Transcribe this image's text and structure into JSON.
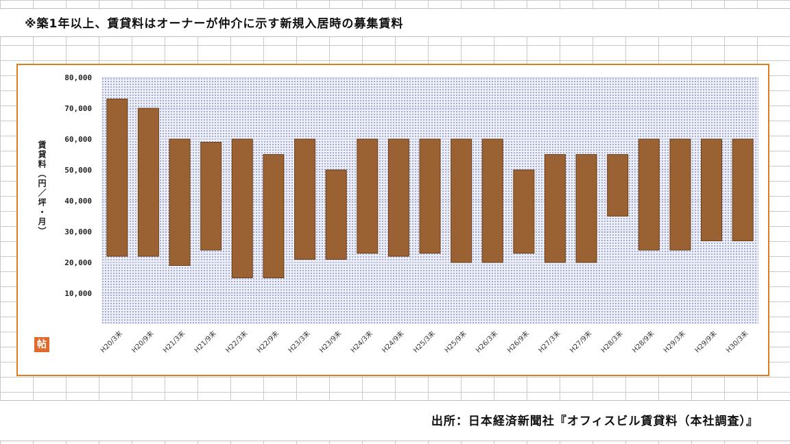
{
  "note": "※築1年以上、賃貸料はオーナーが仲介に示す新規入居時の募集賃料",
  "source": "出所：日本経済新聞社『オフィスビル賃貸料（本社調査）』",
  "logo_text": "帖",
  "colors": {
    "bar": "#9a6233",
    "bar_stroke": "#6b3f1c",
    "frame": "#e07c1c",
    "plot_dots": "#8d93c3"
  },
  "chart_data": {
    "type": "bar",
    "subtype": "floating-range",
    "categories": [
      "H20/3末",
      "H20/9末",
      "H21/3末",
      "H21/9末",
      "H22/3末",
      "H22/9末",
      "H23/3末",
      "H23/9末",
      "H24/3末",
      "H24/9末",
      "H25/3末",
      "H25/9末",
      "H26/3末",
      "H26/9末",
      "H27/3末",
      "H27/9末",
      "H28/3末",
      "H28/9末",
      "H29/3末",
      "H29/9末",
      "H30/3末"
    ],
    "low": [
      22000,
      22000,
      19000,
      24000,
      15000,
      15000,
      21000,
      21000,
      23000,
      22000,
      23000,
      20000,
      20000,
      23000,
      20000,
      20000,
      35000,
      24000,
      24000,
      27000,
      27000
    ],
    "high": [
      73000,
      70000,
      60000,
      59000,
      60000,
      55000,
      60000,
      50000,
      60000,
      60000,
      60000,
      60000,
      60000,
      50000,
      55000,
      55000,
      55000,
      60000,
      60000,
      60000,
      60000
    ],
    "ylim": [
      0,
      80000
    ],
    "yticks": [
      "10,000",
      "20,000",
      "30,000",
      "40,000",
      "50,000",
      "60,000",
      "70,000",
      "80,000"
    ],
    "ytick_values": [
      10000,
      20000,
      30000,
      40000,
      50000,
      60000,
      70000,
      80000
    ],
    "ylabel": "賃貸料（円／坪・月）",
    "xlabel": "",
    "title": "",
    "grid": true,
    "legend": "none"
  }
}
